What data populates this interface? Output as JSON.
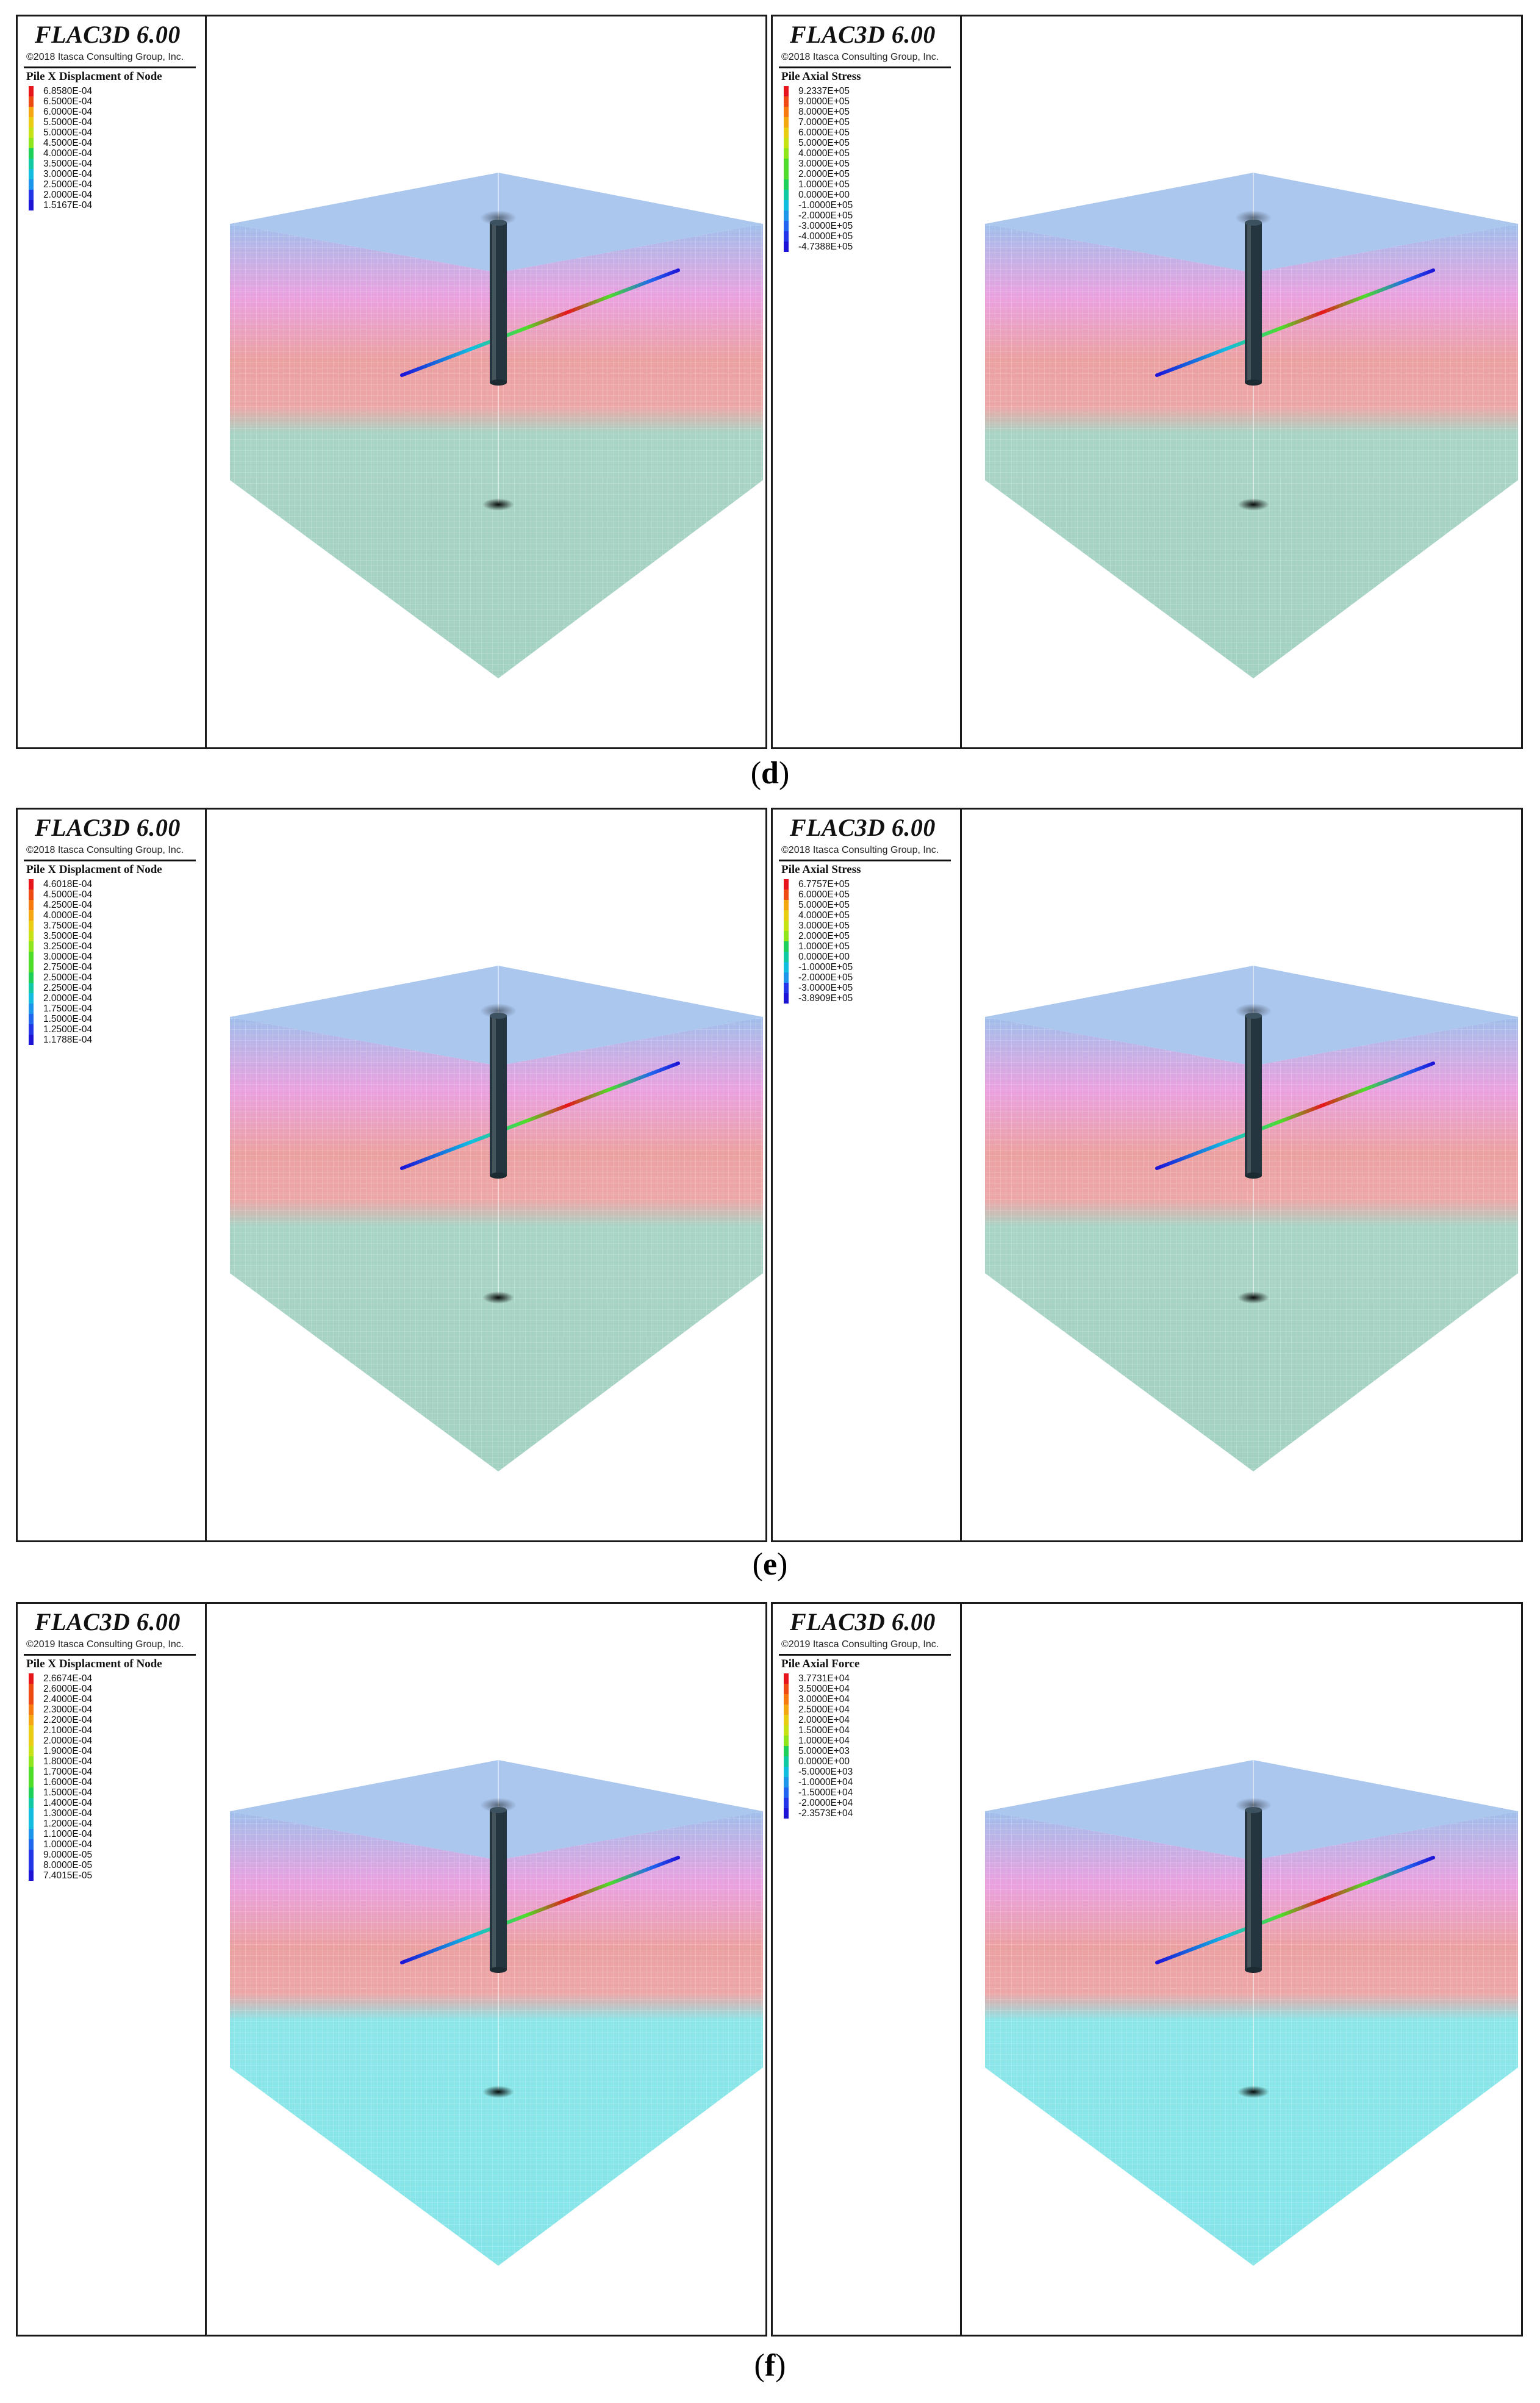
{
  "rows": [
    {
      "caption": "d",
      "panels": [
        {
          "brand": "FLAC3D 6.00",
          "copyright": "©2018 Itasca Consulting Group, Inc.",
          "title": "Pile X Displacment of Node",
          "levels": [
            "6.8580E-04",
            "6.5000E-04",
            "6.0000E-04",
            "5.5000E-04",
            "5.0000E-04",
            "4.5000E-04",
            "4.0000E-04",
            "3.5000E-04",
            "3.0000E-04",
            "2.5000E-04",
            "2.0000E-04",
            "1.5167E-04"
          ]
        },
        {
          "brand": "FLAC3D 6.00",
          "copyright": "©2018 Itasca Consulting Group, Inc.",
          "title": "Pile Axial Stress",
          "levels": [
            "9.2337E+05",
            "9.0000E+05",
            "8.0000E+05",
            "7.0000E+05",
            "6.0000E+05",
            "5.0000E+05",
            "4.0000E+05",
            "3.0000E+05",
            "2.0000E+05",
            "1.0000E+05",
            "0.0000E+00",
            "-1.0000E+05",
            "-2.0000E+05",
            "-3.0000E+05",
            "-4.0000E+05",
            "-4.7388E+05"
          ]
        }
      ]
    },
    {
      "caption": "e",
      "panels": [
        {
          "brand": "FLAC3D 6.00",
          "copyright": "©2018 Itasca Consulting Group, Inc.",
          "title": "Pile X Displacment of Node",
          "levels": [
            "4.6018E-04",
            "4.5000E-04",
            "4.2500E-04",
            "4.0000E-04",
            "3.7500E-04",
            "3.5000E-04",
            "3.2500E-04",
            "3.0000E-04",
            "2.7500E-04",
            "2.5000E-04",
            "2.2500E-04",
            "2.0000E-04",
            "1.7500E-04",
            "1.5000E-04",
            "1.2500E-04",
            "1.1788E-04"
          ]
        },
        {
          "brand": "FLAC3D 6.00",
          "copyright": "©2018 Itasca Consulting Group, Inc.",
          "title": "Pile Axial Stress",
          "levels": [
            "6.7757E+05",
            "6.0000E+05",
            "5.0000E+05",
            "4.0000E+05",
            "3.0000E+05",
            "2.0000E+05",
            "1.0000E+05",
            "0.0000E+00",
            "-1.0000E+05",
            "-2.0000E+05",
            "-3.0000E+05",
            "-3.8909E+05"
          ]
        }
      ]
    },
    {
      "caption": "f",
      "panels": [
        {
          "brand": "FLAC3D 6.00",
          "copyright": "©2019 Itasca Consulting Group, Inc.",
          "title": "Pile X Displacment of Node",
          "levels": [
            "2.6674E-04",
            "2.6000E-04",
            "2.4000E-04",
            "2.3000E-04",
            "2.2000E-04",
            "2.1000E-04",
            "2.0000E-04",
            "1.9000E-04",
            "1.8000E-04",
            "1.7000E-04",
            "1.6000E-04",
            "1.5000E-04",
            "1.4000E-04",
            "1.3000E-04",
            "1.2000E-04",
            "1.1000E-04",
            "1.0000E-04",
            "9.0000E-05",
            "8.0000E-05",
            "7.4015E-05"
          ]
        },
        {
          "brand": "FLAC3D 6.00",
          "copyright": "©2019 Itasca Consulting Group, Inc.",
          "title": "Pile Axial Force",
          "levels": [
            "3.7731E+04",
            "3.5000E+04",
            "3.0000E+04",
            "2.5000E+04",
            "2.0000E+04",
            "1.5000E+04",
            "1.0000E+04",
            "5.0000E+03",
            "0.0000E+00",
            "-5.0000E+03",
            "-1.0000E+04",
            "-1.5000E+04",
            "-2.0000E+04",
            "-2.3573E+04"
          ]
        }
      ]
    }
  ],
  "colors": {
    "ramp": [
      "#e8141c",
      "#f04a14",
      "#f77a10",
      "#f5a712",
      "#e9cd13",
      "#c6e214",
      "#8fe51c",
      "#4fdc2a",
      "#1ed05a",
      "#11c9a3",
      "#12bde0",
      "#1d95ea",
      "#2166ee",
      "#2236e8",
      "#1d14d8"
    ],
    "top_face": "#8fb4e8",
    "band_magenta": "#e48ad8",
    "band_red": "#e89090",
    "lower_green": "#9fcfbf",
    "lower_cyan": "#7ee3e6",
    "pile": "#25353f",
    "outline": "#1a1a1a"
  }
}
